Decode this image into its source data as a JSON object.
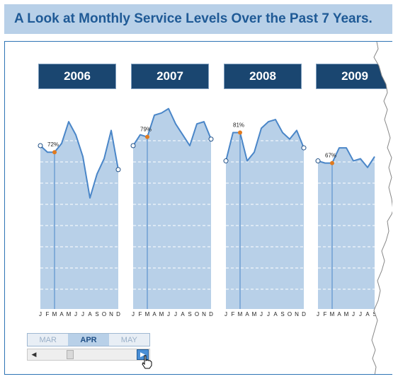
{
  "title": "A Look at Monthly Service Levels Over the Past 7 Years.",
  "month_selector": {
    "options": [
      "MAR",
      "APR",
      "MAY"
    ],
    "selected": "APR"
  },
  "colors": {
    "title_bg": "#b8d0e8",
    "title_text": "#1f5a96",
    "year_box": "#1a4670",
    "area_fill": "#b8d0e8",
    "line": "#4a86c8",
    "highlight_marker": "#e07a1f"
  },
  "chart_data": [
    {
      "type": "area",
      "title": "2006",
      "x": [
        "J",
        "F",
        "M",
        "A",
        "M",
        "J",
        "J",
        "A",
        "S",
        "O",
        "N",
        "D"
      ],
      "values": [
        75,
        72,
        72,
        76,
        86,
        80,
        70,
        51,
        62,
        69,
        82,
        64
      ],
      "highlight": {
        "index": 2,
        "label": "72%"
      },
      "ylim": [
        0,
        100
      ]
    },
    {
      "type": "area",
      "title": "2007",
      "x": [
        "J",
        "F",
        "M",
        "A",
        "M",
        "J",
        "J",
        "A",
        "S",
        "O",
        "N",
        "D"
      ],
      "values": [
        75,
        80,
        79,
        89,
        90,
        92,
        85,
        80,
        75,
        85,
        86,
        78
      ],
      "highlight": {
        "index": 2,
        "label": "79%"
      },
      "ylim": [
        0,
        100
      ]
    },
    {
      "type": "area",
      "title": "2008",
      "x": [
        "J",
        "F",
        "M",
        "A",
        "M",
        "J",
        "J",
        "A",
        "S",
        "O",
        "N",
        "D"
      ],
      "values": [
        68,
        81,
        81,
        68,
        72,
        83,
        86,
        87,
        81,
        78,
        82,
        74
      ],
      "highlight": {
        "index": 2,
        "label": "81%"
      },
      "ylim": [
        0,
        100
      ]
    },
    {
      "type": "area",
      "title": "2009",
      "x": [
        "J",
        "F",
        "M",
        "A",
        "M",
        "J",
        "J",
        "A",
        "S"
      ],
      "values": [
        68,
        67,
        67,
        74,
        74,
        68,
        69,
        65,
        70
      ],
      "highlight": {
        "index": 2,
        "label": "67%"
      },
      "ylim": [
        0,
        100
      ]
    }
  ]
}
